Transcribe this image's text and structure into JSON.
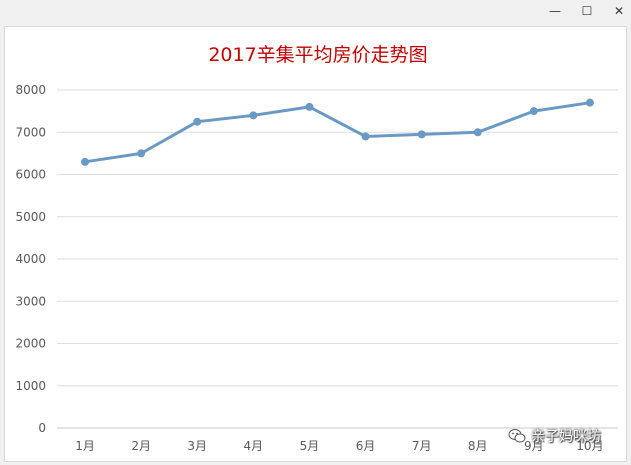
{
  "window": {
    "min_icon": "window-minimize-icon",
    "max_icon": "window-maximize-icon",
    "close_icon": "window-close-icon"
  },
  "watermark": {
    "text": "亲子妈咪坊",
    "icon": "wechat-icon"
  },
  "chart_data": {
    "type": "line",
    "title": "2017辛集平均房价走势图",
    "title_color": "#c00000",
    "categories": [
      "1月",
      "2月",
      "3月",
      "4月",
      "5月",
      "6月",
      "7月",
      "8月",
      "9月",
      "10月"
    ],
    "series": [
      {
        "values": [
          6300,
          6500,
          7250,
          7400,
          7600,
          6900,
          6950,
          7000,
          7500,
          7700
        ],
        "color": "#6a9ac4"
      }
    ],
    "ylim": [
      0,
      8000
    ],
    "yticks": [
      0,
      1000,
      2000,
      3000,
      4000,
      5000,
      6000,
      7000,
      8000
    ],
    "xlabel": "",
    "ylabel": "",
    "grid": true,
    "legend": "none"
  }
}
